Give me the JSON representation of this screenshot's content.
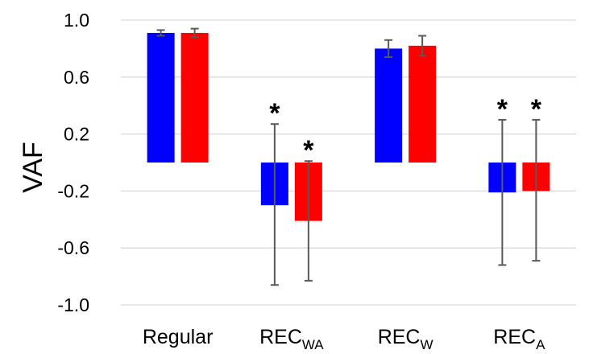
{
  "chart_data": {
    "type": "bar",
    "ylabel": "VAF",
    "ylim": [
      -1.0,
      1.0
    ],
    "yticks": [
      "1.0",
      "0.6",
      "0.2",
      "-0.2",
      "-0.6",
      "-1.0"
    ],
    "grid": true,
    "categories": [
      {
        "main": "Regular",
        "sub": ""
      },
      {
        "main": "REC",
        "sub": "WA"
      },
      {
        "main": "REC",
        "sub": "W"
      },
      {
        "main": "REC",
        "sub": "A"
      }
    ],
    "series": [
      {
        "color": "#0000ff",
        "values": [
          0.91,
          -0.3,
          0.8,
          -0.21
        ],
        "err_low": [
          0.89,
          -0.86,
          0.74,
          -0.72
        ],
        "err_high": [
          0.93,
          0.27,
          0.86,
          0.3
        ],
        "significant": [
          false,
          true,
          false,
          true
        ]
      },
      {
        "color": "#ff0000",
        "values": [
          0.91,
          -0.41,
          0.82,
          -0.2
        ],
        "err_low": [
          0.88,
          -0.83,
          0.75,
          -0.69
        ],
        "err_high": [
          0.94,
          0.01,
          0.89,
          0.3
        ],
        "significant": [
          false,
          true,
          false,
          true
        ]
      }
    ],
    "annotation_symbol": "*",
    "gridline_color": "#d9d9d9",
    "errorbar_color": "#595959"
  }
}
